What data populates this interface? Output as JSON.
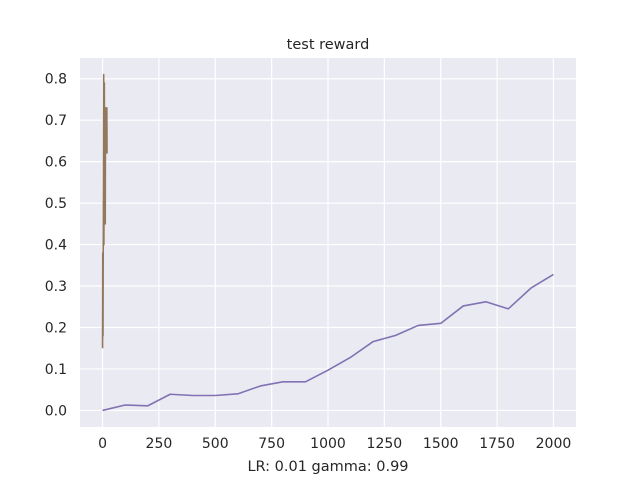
{
  "chart_data": {
    "type": "line",
    "title": "test reward",
    "xlabel": "LR: 0.01 gamma: 0.99",
    "ylabel": "",
    "xlim": [
      -100,
      2100
    ],
    "ylim": [
      -0.04,
      0.85
    ],
    "xticks": [
      0,
      250,
      500,
      750,
      1000,
      1250,
      1500,
      1750,
      2000
    ],
    "xtick_labels": [
      "0",
      "250",
      "500",
      "750",
      "1000",
      "1250",
      "1500",
      "1750",
      "2000"
    ],
    "yticks": [
      0.0,
      0.1,
      0.2,
      0.3,
      0.4,
      0.5,
      0.6,
      0.7,
      0.8
    ],
    "ytick_labels": [
      "0.0",
      "0.1",
      "0.2",
      "0.3",
      "0.4",
      "0.5",
      "0.6",
      "0.7",
      "0.8"
    ],
    "grid": true,
    "background": "#eaeaf2",
    "grid_color": "#ffffff",
    "series": [
      {
        "color": "#8172b3",
        "x": [
          0,
          100,
          200,
          300,
          400,
          500,
          600,
          700,
          800,
          900,
          1000,
          1100,
          1200,
          1300,
          1400,
          1500,
          1600,
          1700,
          1800,
          1900,
          2000
        ],
        "y": [
          0.0,
          0.013,
          0.011,
          0.039,
          0.036,
          0.036,
          0.04,
          0.059,
          0.069,
          0.069,
          0.097,
          0.128,
          0.166,
          0.181,
          0.205,
          0.21,
          0.252,
          0.262,
          0.245,
          0.295,
          0.328
        ]
      },
      {
        "color": "#937860",
        "x": [
          0,
          1,
          2,
          3,
          4,
          5,
          6,
          7,
          8,
          9,
          10,
          11,
          12,
          13,
          14,
          15,
          16,
          17,
          18,
          19,
          20
        ],
        "y": [
          0.15,
          0.38,
          0.18,
          0.4,
          0.55,
          0.81,
          0.4,
          0.62,
          0.79,
          0.5,
          0.7,
          0.71,
          0.45,
          0.73,
          0.66,
          0.62,
          0.72,
          0.68,
          0.64,
          0.73,
          0.62
        ]
      }
    ]
  }
}
